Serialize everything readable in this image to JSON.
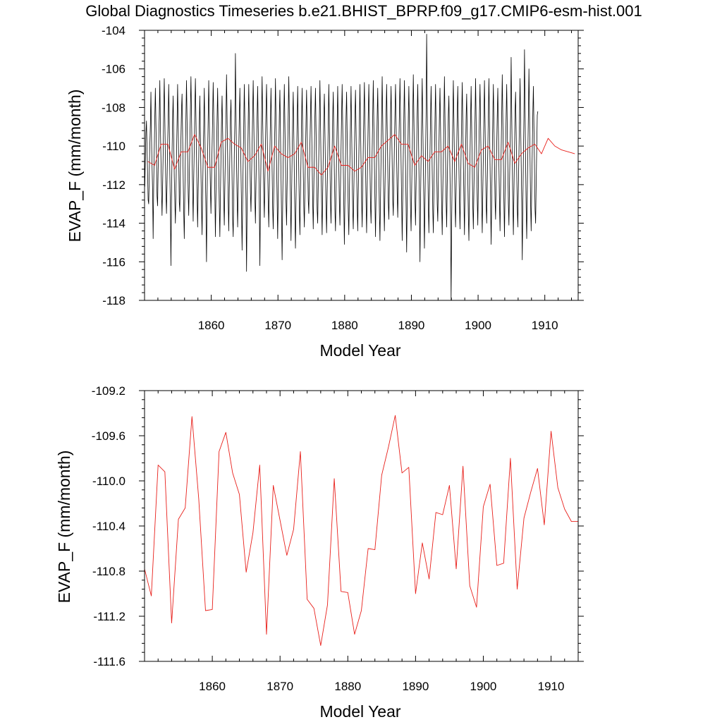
{
  "figure": {
    "title": "Global Diagnostics Timeseries b.e21.BHIST_BPRP.f09_g17.CMIP6-esm-hist.001"
  },
  "chart_data": [
    {
      "type": "line",
      "xlabel": "Model Year",
      "ylabel": "EVAP_F (mm/month)",
      "xlim": [
        1850,
        1915
      ],
      "ylim": [
        -118,
        -104
      ],
      "x_ticks": [
        1860,
        1870,
        1880,
        1890,
        1900,
        1910
      ],
      "y_ticks": [
        -118,
        -116,
        -114,
        -112,
        -110,
        -108,
        -106,
        -104
      ],
      "y_tick_labels": [
        "-118",
        "-116",
        "-114",
        "-112",
        "-110",
        "-108",
        "-106",
        "-104"
      ],
      "grid": false,
      "series": [
        {
          "kind": "monthly",
          "color": "#000000",
          "x_start": 1850.04,
          "x_step": 0.08333,
          "values": [
            -112.1,
            -110.6,
            -109.3,
            -108.7,
            -110.1,
            -111.4,
            -112.8,
            -113.0,
            -111.6,
            -110.0,
            -108.9,
            -107.2,
            -109.5,
            -111.0,
            -112.3,
            -114.8,
            -112.0,
            -110.2,
            -108.5,
            -107.0,
            -108.8,
            -110.5,
            -112.6,
            -113.1,
            -111.2,
            -109.8,
            -108.4,
            -106.6,
            -108.9,
            -110.6,
            -112.2,
            -113.6,
            -112.1,
            -110.4,
            -108.2,
            -106.5,
            -108.5,
            -110.7,
            -112.4,
            -113.5,
            -111.9,
            -110.0,
            -108.7,
            -106.8,
            -108.7,
            -111.4,
            -113.2,
            -116.2,
            -112.9,
            -110.4,
            -108.6,
            -107.4,
            -109.6,
            -111.6,
            -112.8,
            -114.0,
            -112.4,
            -110.6,
            -108.8,
            -106.8,
            -108.8,
            -110.6,
            -112.9,
            -113.4,
            -111.3,
            -109.6,
            -108.1,
            -107.3,
            -109.4,
            -111.5,
            -113.4,
            -114.8,
            -112.5,
            -110.2,
            -108.5,
            -106.6,
            -108.6,
            -110.5,
            -112.4,
            -113.6,
            -111.8,
            -109.9,
            -108.2,
            -106.4,
            -108.4,
            -110.4,
            -112.2,
            -113.9,
            -111.7,
            -110.0,
            -108.1,
            -106.5,
            -108.5,
            -110.6,
            -112.5,
            -114.2,
            -112.3,
            -110.6,
            -108.9,
            -107.4,
            -109.4,
            -111.4,
            -113.1,
            -114.6,
            -112.4,
            -110.6,
            -108.9,
            -107.0,
            -109.1,
            -111.5,
            -113.4,
            -116.0,
            -112.7,
            -110.5,
            -108.6,
            -106.6,
            -108.6,
            -110.6,
            -112.2,
            -113.5,
            -111.7,
            -110.1,
            -108.5,
            -106.7,
            -108.4,
            -110.5,
            -112.5,
            -114.7,
            -112.5,
            -110.4,
            -108.6,
            -107.0,
            -109.0,
            -111.2,
            -113.1,
            -114.7,
            -112.6,
            -110.7,
            -108.7,
            -107.4,
            -109.2,
            -110.9,
            -112.8,
            -114.1,
            -112.1,
            -110.3,
            -108.6,
            -106.3,
            -108.4,
            -110.6,
            -112.8,
            -114.4,
            -112.2,
            -110.3,
            -108.5,
            -107.6,
            -109.5,
            -111.7,
            -113.8,
            -114.7,
            -112.5,
            -110.4,
            -108.7,
            -105.2,
            -108.1,
            -110.8,
            -112.7,
            -114.2,
            -112.1,
            -110.2,
            -108.5,
            -107.0,
            -109.1,
            -111.3,
            -113.2,
            -115.4,
            -112.9,
            -110.7,
            -108.8,
            -106.8,
            -108.7,
            -110.8,
            -112.8,
            -116.5,
            -113.3,
            -110.9,
            -108.7,
            -106.8,
            -108.8,
            -110.6,
            -112.4,
            -113.4,
            -111.6,
            -110.0,
            -108.3,
            -106.6,
            -108.6,
            -110.7,
            -112.7,
            -114.0,
            -112.0,
            -110.2,
            -108.5,
            -106.9,
            -108.9,
            -111.0,
            -113.0,
            -116.2,
            -112.9,
            -110.6,
            -108.6,
            -106.4,
            -108.5,
            -110.5,
            -112.4,
            -113.7,
            -111.8,
            -110.0,
            -108.2,
            -106.8,
            -108.9,
            -111.0,
            -112.9,
            -114.2,
            -112.2,
            -110.4,
            -108.6,
            -107.0,
            -109.1,
            -111.2,
            -113.2,
            -114.3,
            -112.3,
            -110.5,
            -108.8,
            -106.5,
            -108.5,
            -110.7,
            -112.8,
            -114.8,
            -112.6,
            -110.4,
            -108.4,
            -107.1,
            -109.2,
            -111.5,
            -113.6,
            -115.9,
            -113.1,
            -110.6,
            -108.5,
            -106.8,
            -108.8,
            -110.9,
            -112.9,
            -114.1,
            -112.1,
            -110.2,
            -108.4,
            -106.4,
            -108.4,
            -110.7,
            -112.8,
            -114.9,
            -112.6,
            -110.5,
            -108.6,
            -107.2,
            -109.3,
            -111.6,
            -113.6,
            -115.3,
            -112.9,
            -110.8,
            -108.8,
            -106.9,
            -109.0,
            -111.3,
            -113.3,
            -114.6,
            -112.5,
            -110.6,
            -108.7,
            -107.0,
            -109.1,
            -111.2,
            -113.1,
            -114.2,
            -112.3,
            -110.5,
            -108.7,
            -107.1,
            -109.0,
            -111.0,
            -112.8,
            -113.5,
            -111.7,
            -110.0,
            -108.4,
            -106.9,
            -108.8,
            -110.8,
            -112.9,
            -114.3,
            -112.2,
            -110.3,
            -108.4,
            -107.0,
            -109.0,
            -111.2,
            -113.3,
            -114.0,
            -112.1,
            -110.4,
            -108.6,
            -106.6,
            -108.7,
            -110.9,
            -112.9,
            -114.6,
            -112.4,
            -110.4,
            -108.5,
            -107.3,
            -109.2,
            -111.3,
            -113.2,
            -114.5,
            -112.5,
            -110.7,
            -108.9,
            -106.8,
            -108.8,
            -110.9,
            -112.9,
            -114.0,
            -112.0,
            -110.2,
            -108.5,
            -107.2,
            -109.3,
            -111.4,
            -113.3,
            -114.4,
            -112.4,
            -110.6,
            -108.8,
            -106.9,
            -109.0,
            -111.1,
            -113.0,
            -114.1,
            -112.1,
            -110.2,
            -108.4,
            -106.8,
            -108.9,
            -111.0,
            -113.1,
            -115.1,
            -112.8,
            -110.6,
            -108.5,
            -107.2,
            -109.3,
            -111.5,
            -113.4,
            -114.6,
            -112.5,
            -110.6,
            -108.7,
            -106.9,
            -109.1,
            -111.3,
            -113.3,
            -114.3,
            -112.3,
            -110.4,
            -108.5,
            -107.1,
            -109.1,
            -111.2,
            -113.1,
            -114.4,
            -112.4,
            -110.5,
            -108.7,
            -106.8,
            -108.8,
            -110.9,
            -112.8,
            -114.2,
            -112.1,
            -110.1,
            -108.3,
            -106.7,
            -108.8,
            -110.9,
            -112.9,
            -114.5,
            -112.4,
            -110.3,
            -108.3,
            -106.8,
            -108.9,
            -111.1,
            -113.1,
            -114.0,
            -112.0,
            -110.2,
            -108.4,
            -106.6,
            -108.8,
            -110.9,
            -112.9,
            -114.7,
            -112.5,
            -110.4,
            -108.5,
            -107.0,
            -109.1,
            -111.3,
            -113.4,
            -114.9,
            -112.7,
            -110.6,
            -108.6,
            -106.4,
            -108.6,
            -110.9,
            -113.0,
            -114.4,
            -112.3,
            -110.3,
            -108.4,
            -106.8,
            -108.9,
            -111.0,
            -112.9,
            -113.8,
            -111.9,
            -110.1,
            -108.4,
            -106.9,
            -108.9,
            -110.9,
            -112.8,
            -113.6,
            -111.7,
            -110.0,
            -108.3,
            -106.8,
            -108.7,
            -110.6,
            -112.5,
            -113.7,
            -111.8,
            -110.0,
            -108.3,
            -106.5,
            -108.6,
            -110.8,
            -112.8,
            -114.9,
            -112.6,
            -110.4,
            -108.4,
            -106.6,
            -108.8,
            -110.9,
            -113.1,
            -115.5,
            -113.0,
            -110.7,
            -108.5,
            -106.9,
            -108.9,
            -111.1,
            -113.2,
            -114.4,
            -112.4,
            -110.4,
            -108.5,
            -106.3,
            -108.4,
            -110.6,
            -112.8,
            -114.1,
            -112.1,
            -110.2,
            -108.3,
            -106.8,
            -108.8,
            -111.0,
            -113.0,
            -116.0,
            -112.9,
            -110.6,
            -108.5,
            -106.5,
            -108.7,
            -110.9,
            -113.0,
            -115.3,
            -112.9,
            -110.6,
            -108.4,
            -104.2,
            -107.8,
            -110.7,
            -113.1,
            -114.5,
            -112.4,
            -110.4,
            -108.5,
            -106.9,
            -109.0,
            -111.3,
            -113.3,
            -114.5,
            -112.4,
            -110.5,
            -108.6,
            -106.8,
            -108.9,
            -111.0,
            -113.0,
            -113.9,
            -112.0,
            -110.2,
            -108.4,
            -107.0,
            -109.0,
            -111.2,
            -113.1,
            -114.6,
            -112.5,
            -110.5,
            -108.6,
            -106.4,
            -108.5,
            -110.8,
            -112.9,
            -114.2,
            -112.1,
            -110.2,
            -108.4,
            -107.4,
            -109.4,
            -111.6,
            -113.6,
            -118.0,
            -114.0,
            -111.0,
            -108.6,
            -106.6,
            -108.6,
            -110.8,
            -112.9,
            -114.2,
            -112.3,
            -110.3,
            -108.3,
            -106.9,
            -109.0,
            -111.0,
            -112.9,
            -114.3,
            -112.2,
            -110.3,
            -108.5,
            -106.7,
            -108.7,
            -110.8,
            -112.8,
            -114.6,
            -112.4,
            -110.4,
            -108.5,
            -107.3,
            -109.4,
            -111.6,
            -113.6,
            -114.9,
            -112.6,
            -110.5,
            -108.6,
            -106.9,
            -109.0,
            -111.1,
            -113.1,
            -114.3,
            -112.3,
            -110.4,
            -108.6,
            -106.5,
            -108.6,
            -110.8,
            -112.8,
            -114.1,
            -112.0,
            -110.1,
            -108.3,
            -106.8,
            -108.8,
            -110.9,
            -112.9,
            -114.5,
            -112.4,
            -110.4,
            -108.5,
            -106.6,
            -108.7,
            -110.9,
            -113.0,
            -114.0,
            -112.0,
            -110.2,
            -108.4,
            -106.5,
            -108.6,
            -110.9,
            -112.9,
            -115.1,
            -112.8,
            -110.6,
            -108.5,
            -106.8,
            -108.8,
            -110.9,
            -112.8,
            -113.8,
            -111.9,
            -110.1,
            -108.4,
            -107.0,
            -109.0,
            -111.0,
            -112.9,
            -114.4,
            -112.3,
            -110.3,
            -108.4,
            -106.3,
            -108.5,
            -110.8,
            -112.9,
            -114.7,
            -112.5,
            -110.4,
            -108.4,
            -106.8,
            -108.9,
            -111.0,
            -113.0,
            -114.1,
            -112.1,
            -110.3,
            -108.5,
            -105.4,
            -108.2,
            -110.8,
            -112.9,
            -114.6,
            -112.4,
            -110.3,
            -108.3,
            -107.2,
            -109.2,
            -111.3,
            -113.2,
            -114.2,
            -112.2,
            -110.4,
            -108.6,
            -106.5,
            -108.6,
            -110.8,
            -112.9,
            -115.9,
            -113.1,
            -110.7,
            -108.5,
            -105.0,
            -108.0,
            -110.8,
            -113.2,
            -114.8,
            -112.5,
            -110.4,
            -108.4,
            -106.0,
            -108.3,
            -110.7,
            -113.0,
            -114.4,
            -112.2,
            -110.2,
            -108.3,
            -106.9,
            -109.0,
            -111.2,
            -113.3,
            -114.0,
            -112.0,
            -110.1,
            -108.4,
            -108.2
          ]
        },
        {
          "kind": "annual",
          "color": "#e8201b",
          "x_start": 1850.5,
          "x_step": 1,
          "values": [
            -110.8,
            -111.0,
            -109.9,
            -109.9,
            -111.2,
            -110.3,
            -110.3,
            -109.4,
            -110.1,
            -111.1,
            -111.1,
            -109.8,
            -109.6,
            -109.9,
            -110.1,
            -110.8,
            -110.5,
            -109.9,
            -111.3,
            -110.0,
            -110.4,
            -110.6,
            -110.4,
            -109.8,
            -111.1,
            -111.1,
            -111.5,
            -111.1,
            -110.0,
            -111.0,
            -111.0,
            -111.3,
            -111.1,
            -110.6,
            -110.6,
            -110.0,
            -109.7,
            -109.4,
            -109.9,
            -109.9,
            -111.0,
            -110.5,
            -110.8,
            -110.3,
            -110.3,
            -110.0,
            -110.8,
            -109.9,
            -110.9,
            -111.1,
            -110.2,
            -110.0,
            -110.7,
            -110.7,
            -109.8,
            -110.9,
            -110.4,
            -110.1,
            -109.9,
            -110.4,
            -109.6,
            -110.0,
            -110.2,
            -110.3,
            -110.4
          ]
        }
      ]
    },
    {
      "type": "line",
      "xlabel": "Model Year",
      "ylabel": "EVAP_F (mm/month)",
      "xlim": [
        1850,
        1914
      ],
      "ylim": [
        -111.6,
        -109.2
      ],
      "x_ticks": [
        1860,
        1870,
        1880,
        1890,
        1900,
        1910
      ],
      "y_ticks": [
        -111.6,
        -111.2,
        -110.8,
        -110.4,
        -110.0,
        -109.6,
        -109.2
      ],
      "y_tick_labels": [
        "-111.6",
        "-111.2",
        "-110.8",
        "-110.4",
        "-110.0",
        "-109.6",
        "-109.2"
      ],
      "grid": false,
      "series": [
        {
          "kind": "annual",
          "color": "#e8201b",
          "x": [
            1850,
            1851,
            1852,
            1853,
            1854,
            1855,
            1856,
            1857,
            1858,
            1859,
            1860,
            1861,
            1862,
            1863,
            1864,
            1865,
            1866,
            1867,
            1868,
            1869,
            1870,
            1871,
            1872,
            1873,
            1874,
            1875,
            1876,
            1877,
            1878,
            1879,
            1880,
            1881,
            1882,
            1883,
            1884,
            1885,
            1886,
            1887,
            1888,
            1889,
            1890,
            1891,
            1892,
            1893,
            1894,
            1895,
            1896,
            1897,
            1898,
            1899,
            1900,
            1901,
            1902,
            1903,
            1904,
            1905,
            1906,
            1907,
            1908,
            1909,
            1910,
            1911,
            1912,
            1913,
            1914
          ],
          "values": [
            -110.78,
            -111.02,
            -109.86,
            -109.92,
            -111.26,
            -110.34,
            -110.24,
            -109.43,
            -110.16,
            -111.15,
            -111.14,
            -109.74,
            -109.57,
            -109.93,
            -110.12,
            -110.81,
            -110.46,
            -109.86,
            -111.36,
            -110.04,
            -110.35,
            -110.66,
            -110.43,
            -109.74,
            -111.05,
            -111.13,
            -111.46,
            -111.1,
            -109.98,
            -110.98,
            -110.99,
            -111.36,
            -111.15,
            -110.6,
            -110.61,
            -109.95,
            -109.7,
            -109.42,
            -109.93,
            -109.88,
            -111.0,
            -110.55,
            -110.87,
            -110.28,
            -110.3,
            -110.04,
            -110.78,
            -109.87,
            -110.93,
            -111.12,
            -110.23,
            -110.03,
            -110.75,
            -110.73,
            -109.8,
            -110.96,
            -110.33,
            -110.1,
            -109.89,
            -110.39,
            -109.56,
            -110.06,
            -110.25,
            -110.36,
            -110.36
          ]
        }
      ]
    }
  ]
}
